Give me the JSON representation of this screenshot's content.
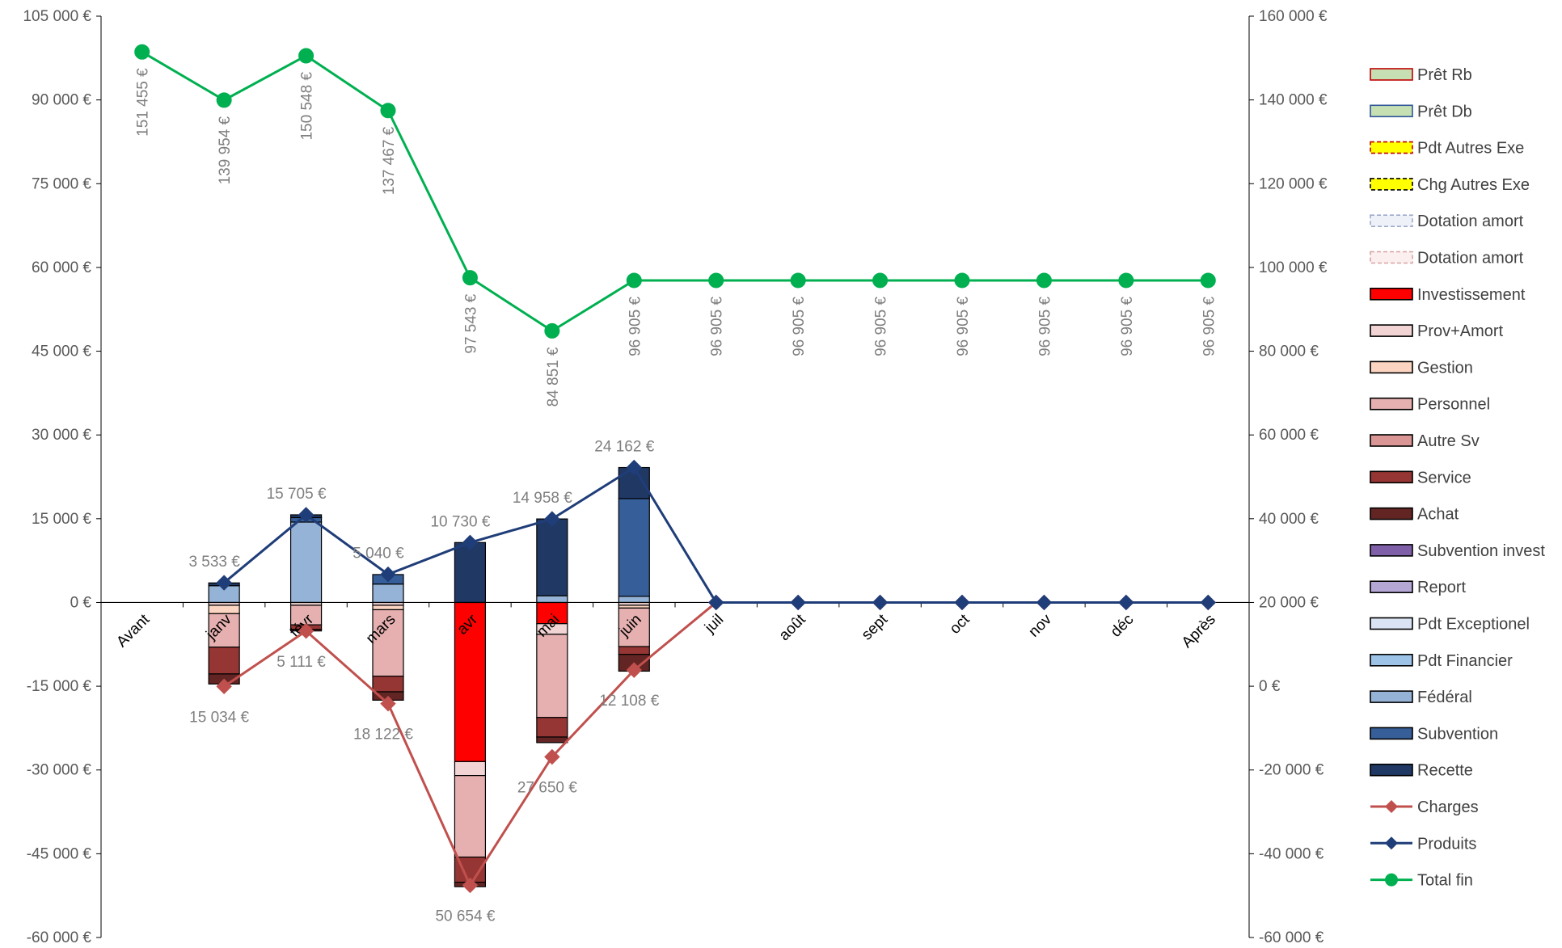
{
  "chart_data": {
    "type": "combo-stacked-bar-line",
    "categories": [
      "Avant",
      "janv",
      "févr",
      "mars",
      "avr",
      "mai",
      "juin",
      "juil",
      "août",
      "sept",
      "oct",
      "nov",
      "déc",
      "Après"
    ],
    "left_axis": {
      "ylim": [
        -60000,
        105000
      ],
      "step": 15000,
      "ticks": [
        "105 000 €",
        "90 000 €",
        "75 000 €",
        "60 000 €",
        "45 000 €",
        "30 000 €",
        "15 000 €",
        "0 €",
        "-15 000 €",
        "-30 000 €",
        "-45 000 €",
        "-60 000 €"
      ]
    },
    "right_axis": {
      "ylim": [
        -60000,
        160000
      ],
      "step": 20000,
      "ticks": [
        "160 000 €",
        "140 000 €",
        "120 000 €",
        "100 000 €",
        "80 000 €",
        "60 000 €",
        "40 000 €",
        "20 000 €",
        "0 €",
        "-20 000 €",
        "-40 000 €",
        "-60 000 €"
      ]
    },
    "stack_series": [
      {
        "name": "Prêt Rb",
        "color": "#c6e0b4",
        "border": "#c00000",
        "dashed": false,
        "values": [
          0,
          0,
          0,
          0,
          0,
          0,
          0,
          0,
          0,
          0,
          0,
          0,
          0,
          0
        ]
      },
      {
        "name": "Prêt Db",
        "color": "#c6e0b4",
        "border": "#2f5597",
        "dashed": false,
        "values": [
          0,
          0,
          0,
          0,
          0,
          0,
          0,
          0,
          0,
          0,
          0,
          0,
          0,
          0
        ]
      },
      {
        "name": "Pdt Autres Exe",
        "color": "#ffff00",
        "border": "#c00000",
        "dashed": true,
        "values": [
          0,
          0,
          0,
          0,
          0,
          0,
          0,
          0,
          0,
          0,
          0,
          0,
          0,
          0
        ]
      },
      {
        "name": "Chg Autres Exe",
        "color": "#ffff00",
        "border": "#000000",
        "dashed": true,
        "values": [
          0,
          0,
          0,
          0,
          0,
          0,
          0,
          0,
          0,
          0,
          0,
          0,
          0,
          0
        ]
      },
      {
        "name": "Dotation amort",
        "color": "#eef1f8",
        "border": "#9dabc9",
        "dashed": true,
        "values": [
          0,
          0,
          0,
          0,
          0,
          0,
          0,
          0,
          0,
          0,
          0,
          0,
          0,
          0
        ]
      },
      {
        "name": "Dotation amort",
        "color": "#fbefef",
        "border": "#d9a3a3",
        "dashed": true,
        "values": [
          0,
          0,
          0,
          0,
          0,
          0,
          0,
          0,
          0,
          0,
          0,
          0,
          0,
          0
        ]
      },
      {
        "name": "Investissement",
        "color": "#ff0000",
        "border": "#000000",
        "dashed": false,
        "values": [
          0,
          0,
          0,
          0,
          -28500,
          -3800,
          0,
          0,
          0,
          0,
          0,
          0,
          0,
          0
        ]
      },
      {
        "name": "Prov+Amort",
        "color": "#f2d4d4",
        "border": "#000000",
        "dashed": false,
        "values": [
          0,
          -500,
          -500,
          -500,
          -2500,
          -1900,
          -500,
          0,
          0,
          0,
          0,
          0,
          0,
          0
        ]
      },
      {
        "name": "Gestion",
        "color": "#fbd5c1",
        "border": "#000000",
        "dashed": false,
        "values": [
          0,
          -1500,
          0,
          -800,
          0,
          0,
          -500,
          0,
          0,
          0,
          0,
          0,
          0,
          0
        ]
      },
      {
        "name": "Personnel",
        "color": "#e6b0b0",
        "border": "#000000",
        "dashed": false,
        "values": [
          0,
          -6000,
          -3500,
          -11900,
          -14600,
          -14900,
          -6900,
          0,
          0,
          0,
          0,
          0,
          0,
          0
        ]
      },
      {
        "name": "Autre Sv",
        "color": "#d99694",
        "border": "#000000",
        "dashed": false,
        "values": [
          0,
          0,
          0,
          0,
          0,
          0,
          0,
          0,
          0,
          0,
          0,
          0,
          0,
          0
        ]
      },
      {
        "name": "Service",
        "color": "#963634",
        "border": "#000000",
        "dashed": false,
        "values": [
          0,
          -4800,
          -800,
          -2800,
          -4500,
          -3500,
          -1400,
          0,
          0,
          0,
          0,
          0,
          0,
          0
        ]
      },
      {
        "name": "Achat",
        "color": "#632523",
        "border": "#000000",
        "dashed": false,
        "values": [
          0,
          -1800,
          -300,
          -1500,
          -800,
          -1000,
          -3000,
          0,
          0,
          0,
          0,
          0,
          0,
          0
        ]
      },
      {
        "name": "Subvention invest",
        "color": "#7f5fa8",
        "border": "#000000",
        "dashed": false,
        "values": [
          0,
          0,
          0,
          0,
          0,
          0,
          0,
          0,
          0,
          0,
          0,
          0,
          0,
          0
        ]
      },
      {
        "name": "Report",
        "color": "#b4a7d6",
        "border": "#000000",
        "dashed": false,
        "values": [
          0,
          0,
          0,
          0,
          0,
          0,
          0,
          0,
          0,
          0,
          0,
          0,
          0,
          0
        ]
      },
      {
        "name": "Pdt Exceptionel",
        "color": "#dae3f3",
        "border": "#000000",
        "dashed": false,
        "values": [
          0,
          0,
          0,
          0,
          0,
          0,
          0,
          0,
          0,
          0,
          0,
          0,
          0,
          0
        ]
      },
      {
        "name": "Pdt Financier",
        "color": "#9dc3e6",
        "border": "#000000",
        "dashed": false,
        "values": [
          0,
          0,
          0,
          0,
          0,
          0,
          0,
          0,
          0,
          0,
          0,
          0,
          0,
          0
        ]
      },
      {
        "name": "Fédéral",
        "color": "#95b3d7",
        "border": "#000000",
        "dashed": false,
        "values": [
          0,
          3000,
          14400,
          3300,
          0,
          1200,
          1100,
          0,
          0,
          0,
          0,
          0,
          0,
          0
        ]
      },
      {
        "name": "Subvention",
        "color": "#365f99",
        "border": "#000000",
        "dashed": false,
        "values": [
          0,
          0,
          800,
          1700,
          0,
          0,
          17500,
          0,
          0,
          0,
          0,
          0,
          0,
          0
        ]
      },
      {
        "name": "Recette",
        "color": "#203864",
        "border": "#000000",
        "dashed": false,
        "values": [
          0,
          500,
          500,
          0,
          10730,
          13758,
          5562,
          0,
          0,
          0,
          0,
          0,
          0,
          0
        ]
      }
    ],
    "line_series": [
      {
        "name": "Charges",
        "axis": "left",
        "color": "#c0504d",
        "marker": "diamond",
        "values": [
          null,
          -15034,
          -5111,
          -18122,
          -50654,
          -27650,
          -12108,
          0,
          0,
          0,
          0,
          0,
          0,
          0
        ],
        "labels": [
          "",
          "15 034 €",
          "5 111 €",
          "18 122 €",
          "50 654 €",
          "27 650 €",
          "12 108 €",
          "",
          "",
          "",
          "",
          "",
          "",
          ""
        ]
      },
      {
        "name": "Produits",
        "axis": "left",
        "color": "#1f3d78",
        "marker": "diamond",
        "values": [
          null,
          3533,
          15705,
          5040,
          10730,
          14958,
          24162,
          0,
          0,
          0,
          0,
          0,
          0,
          0
        ],
        "labels": [
          "",
          "3 533 €",
          "15 705 €",
          "5 040 €",
          "10 730 €",
          "14 958 €",
          "24 162 €",
          "",
          "",
          "",
          "",
          "",
          "",
          ""
        ]
      },
      {
        "name": "Total fin",
        "axis": "right",
        "color": "#00b050",
        "marker": "circle",
        "values": [
          151455,
          139954,
          150548,
          137467,
          97543,
          84851,
          96905,
          96905,
          96905,
          96905,
          96905,
          96905,
          96905,
          96905
        ],
        "labels": [
          "151 455 €",
          "139 954 €",
          "150 548 €",
          "137 467 €",
          "97 543 €",
          "84 851 €",
          "96 905 €",
          "96 905 €",
          "96 905 €",
          "96 905 €",
          "96 905 €",
          "96 905 €",
          "96 905 €",
          "96 905 €"
        ]
      }
    ],
    "legend": {
      "position": "right",
      "entries": [
        {
          "name": "Prêt Rb",
          "kind": "box",
          "color": "#c6e0b4",
          "border": "#c00000",
          "dashed": false
        },
        {
          "name": "Prêt Db",
          "kind": "box",
          "color": "#c6e0b4",
          "border": "#2f5597",
          "dashed": false
        },
        {
          "name": "Pdt Autres Exe",
          "kind": "box",
          "color": "#ffff00",
          "border": "#c00000",
          "dashed": true
        },
        {
          "name": "Chg Autres Exe",
          "kind": "box",
          "color": "#ffff00",
          "border": "#000000",
          "dashed": true
        },
        {
          "name": "Dotation amort",
          "kind": "box",
          "color": "#eef1f8",
          "border": "#9dabc9",
          "dashed": true
        },
        {
          "name": "Dotation amort",
          "kind": "box",
          "color": "#fbefef",
          "border": "#d9a3a3",
          "dashed": true
        },
        {
          "name": "Investissement",
          "kind": "box",
          "color": "#ff0000",
          "border": "#000000",
          "dashed": false
        },
        {
          "name": "Prov+Amort",
          "kind": "box",
          "color": "#f2d4d4",
          "border": "#000000",
          "dashed": false
        },
        {
          "name": "Gestion",
          "kind": "box",
          "color": "#fbd5c1",
          "border": "#000000",
          "dashed": false
        },
        {
          "name": "Personnel",
          "kind": "box",
          "color": "#e6b0b0",
          "border": "#000000",
          "dashed": false
        },
        {
          "name": "Autre Sv",
          "kind": "box",
          "color": "#d99694",
          "border": "#000000",
          "dashed": false
        },
        {
          "name": "Service",
          "kind": "box",
          "color": "#963634",
          "border": "#000000",
          "dashed": false
        },
        {
          "name": "Achat",
          "kind": "box",
          "color": "#632523",
          "border": "#000000",
          "dashed": false
        },
        {
          "name": "Subvention invest",
          "kind": "box",
          "color": "#7f5fa8",
          "border": "#000000",
          "dashed": false
        },
        {
          "name": "Report",
          "kind": "box",
          "color": "#b4a7d6",
          "border": "#000000",
          "dashed": false
        },
        {
          "name": "Pdt Exceptionel",
          "kind": "box",
          "color": "#dae3f3",
          "border": "#000000",
          "dashed": false
        },
        {
          "name": "Pdt Financier",
          "kind": "box",
          "color": "#9dc3e6",
          "border": "#000000",
          "dashed": false
        },
        {
          "name": "Fédéral",
          "kind": "box",
          "color": "#95b3d7",
          "border": "#000000",
          "dashed": false
        },
        {
          "name": "Subvention",
          "kind": "box",
          "color": "#365f99",
          "border": "#000000",
          "dashed": false
        },
        {
          "name": "Recette",
          "kind": "box",
          "color": "#203864",
          "border": "#000000",
          "dashed": false
        },
        {
          "name": "Charges",
          "kind": "line",
          "color": "#c0504d",
          "marker": "diamond"
        },
        {
          "name": "Produits",
          "kind": "line",
          "color": "#1f3d78",
          "marker": "diamond"
        },
        {
          "name": "Total fin",
          "kind": "line",
          "color": "#00b050",
          "marker": "circle"
        }
      ]
    },
    "colors": {
      "axis_text": "#595959",
      "label_text": "#7f7f7f",
      "axis_line": "#000000"
    }
  }
}
